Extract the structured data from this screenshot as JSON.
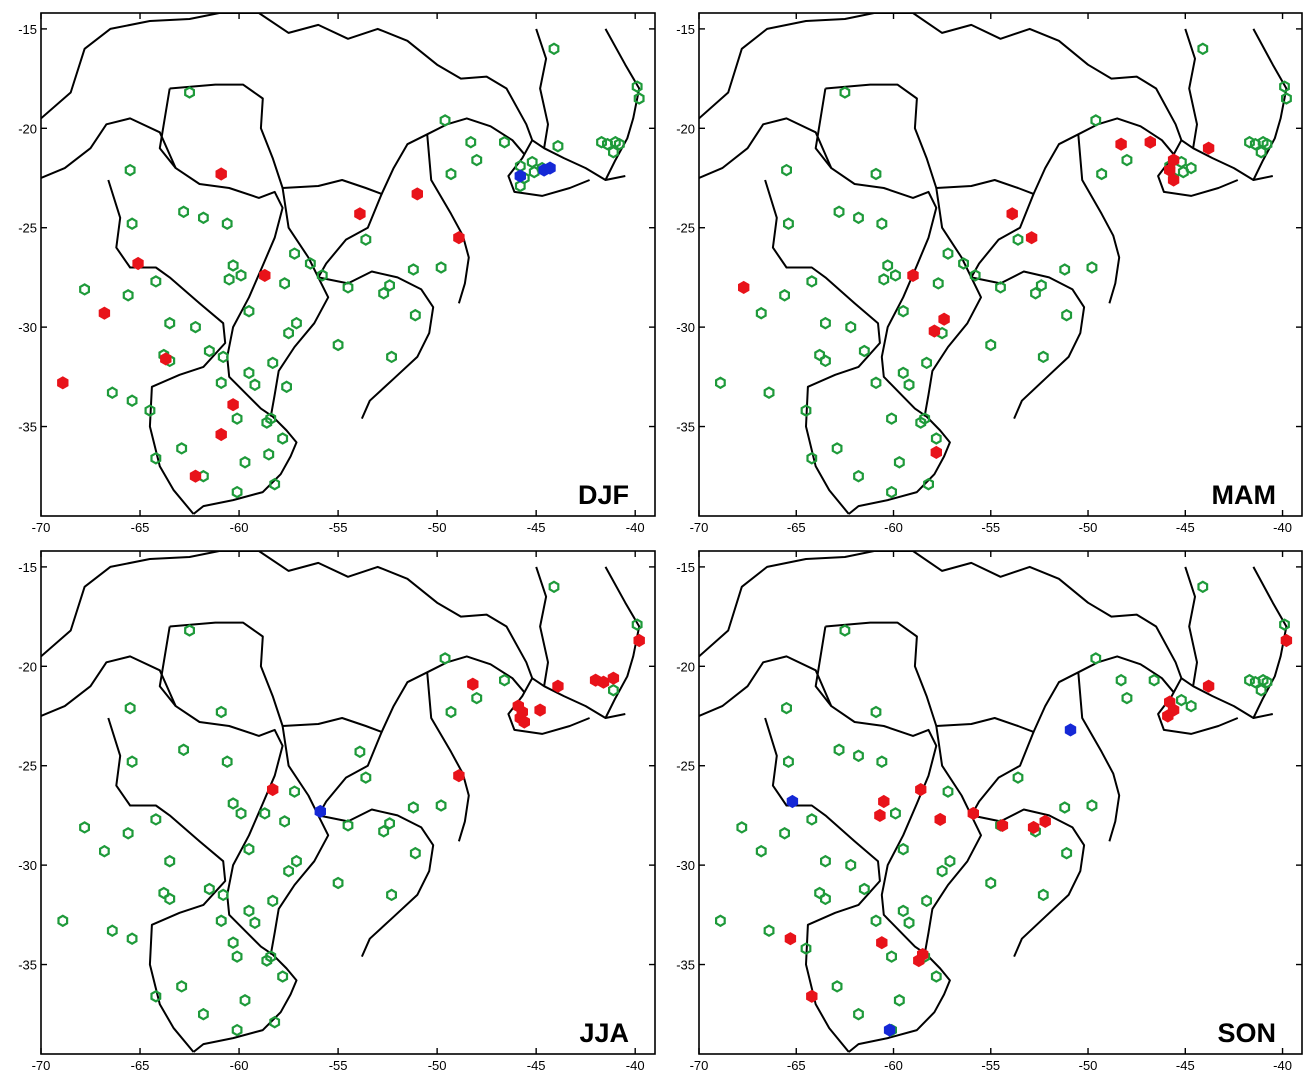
{
  "figure": {
    "lon_range": [
      -70,
      -39
    ],
    "lat_range": [
      -39.5,
      -14.2
    ],
    "x_ticks": [
      -70,
      -65,
      -60,
      -55,
      -50,
      -45,
      -40
    ],
    "y_ticks": [
      -15,
      -20,
      -25,
      -30,
      -35
    ],
    "colors": {
      "neutral": "#1e9a3a",
      "increase": "#e8131a",
      "decrease": "#1528d6",
      "boundary": "#000000"
    }
  },
  "panels": [
    {
      "label": "DJF",
      "green": [
        [
          -62.5,
          -18.2
        ],
        [
          -65.5,
          -22.1
        ],
        [
          -62.8,
          -24.2
        ],
        [
          -65.4,
          -24.8
        ],
        [
          -61.8,
          -24.5
        ],
        [
          -67.8,
          -28.1
        ],
        [
          -65.6,
          -28.4
        ],
        [
          -64.2,
          -27.7
        ],
        [
          -63.5,
          -29.8
        ],
        [
          -63.8,
          -31.4
        ],
        [
          -63.5,
          -31.7
        ],
        [
          -62.2,
          -30.0
        ],
        [
          -61.5,
          -31.2
        ],
        [
          -60.8,
          -31.5
        ],
        [
          -66.4,
          -33.3
        ],
        [
          -65.4,
          -33.7
        ],
        [
          -64.5,
          -34.2
        ],
        [
          -64.2,
          -36.6
        ],
        [
          -62.9,
          -36.1
        ],
        [
          -61.8,
          -37.5
        ],
        [
          -60.1,
          -38.3
        ],
        [
          -58.2,
          -37.9
        ],
        [
          -59.7,
          -36.8
        ],
        [
          -58.5,
          -36.4
        ],
        [
          -57.8,
          -35.6
        ],
        [
          -58.6,
          -34.8
        ],
        [
          -58.4,
          -34.6
        ],
        [
          -60.1,
          -34.6
        ],
        [
          -60.9,
          -32.8
        ],
        [
          -59.5,
          -32.3
        ],
        [
          -59.2,
          -32.9
        ],
        [
          -59.5,
          -29.2
        ],
        [
          -60.3,
          -26.9
        ],
        [
          -60.5,
          -27.6
        ],
        [
          -59.9,
          -27.4
        ],
        [
          -60.6,
          -24.8
        ],
        [
          -57.7,
          -27.8
        ],
        [
          -57.2,
          -26.3
        ],
        [
          -56.4,
          -26.8
        ],
        [
          -55.8,
          -27.4
        ],
        [
          -57.1,
          -29.8
        ],
        [
          -57.5,
          -30.3
        ],
        [
          -58.3,
          -31.8
        ],
        [
          -57.6,
          -33.0
        ],
        [
          -55.0,
          -30.9
        ],
        [
          -54.5,
          -28.0
        ],
        [
          -53.6,
          -25.6
        ],
        [
          -52.7,
          -28.3
        ],
        [
          -52.4,
          -27.9
        ],
        [
          -51.2,
          -27.1
        ],
        [
          -51.1,
          -29.4
        ],
        [
          -52.3,
          -31.5
        ],
        [
          -49.8,
          -27.0
        ],
        [
          -49.3,
          -22.3
        ],
        [
          -49.6,
          -19.6
        ],
        [
          -48.3,
          -20.7
        ],
        [
          -48.0,
          -21.6
        ],
        [
          -46.6,
          -20.7
        ],
        [
          -45.8,
          -21.9
        ],
        [
          -45.2,
          -21.7
        ],
        [
          -45.6,
          -22.5
        ],
        [
          -45.8,
          -22.9
        ],
        [
          -45.1,
          -22.2
        ],
        [
          -44.7,
          -22.0
        ],
        [
          -43.9,
          -20.9
        ],
        [
          -44.1,
          -16.0
        ],
        [
          -41.7,
          -20.7
        ],
        [
          -41.4,
          -20.8
        ],
        [
          -41.0,
          -20.7
        ],
        [
          -40.8,
          -20.8
        ],
        [
          -41.1,
          -21.2
        ],
        [
          -39.9,
          -17.9
        ],
        [
          -39.8,
          -18.5
        ]
      ],
      "red": [
        [
          -60.9,
          -22.3
        ],
        [
          -65.1,
          -26.8
        ],
        [
          -66.8,
          -29.3
        ],
        [
          -63.7,
          -31.6
        ],
        [
          -68.9,
          -32.8
        ],
        [
          -60.3,
          -33.9
        ],
        [
          -60.9,
          -35.4
        ],
        [
          -62.2,
          -37.5
        ],
        [
          -58.7,
          -27.4
        ],
        [
          -53.9,
          -24.3
        ],
        [
          -51.0,
          -23.3
        ],
        [
          -48.9,
          -25.5
        ]
      ],
      "blue": [
        [
          -45.8,
          -22.4
        ],
        [
          -44.6,
          -22.1
        ],
        [
          -44.3,
          -22.0
        ]
      ]
    },
    {
      "label": "MAM",
      "green": [
        [
          -65.5,
          -22.1
        ],
        [
          -62.8,
          -24.2
        ],
        [
          -65.4,
          -24.8
        ],
        [
          -61.8,
          -24.5
        ],
        [
          -66.8,
          -29.3
        ],
        [
          -65.6,
          -28.4
        ],
        [
          -64.2,
          -27.7
        ],
        [
          -63.5,
          -29.8
        ],
        [
          -63.8,
          -31.4
        ],
        [
          -63.5,
          -31.7
        ],
        [
          -62.2,
          -30.0
        ],
        [
          -61.5,
          -31.2
        ],
        [
          -68.9,
          -32.8
        ],
        [
          -66.4,
          -33.3
        ],
        [
          -64.5,
          -34.2
        ],
        [
          -64.2,
          -36.6
        ],
        [
          -62.9,
          -36.1
        ],
        [
          -61.8,
          -37.5
        ],
        [
          -60.1,
          -38.3
        ],
        [
          -58.2,
          -37.9
        ],
        [
          -59.7,
          -36.8
        ],
        [
          -57.8,
          -35.6
        ],
        [
          -58.6,
          -34.8
        ],
        [
          -58.4,
          -34.6
        ],
        [
          -60.1,
          -34.6
        ],
        [
          -60.9,
          -32.8
        ],
        [
          -59.5,
          -32.3
        ],
        [
          -59.2,
          -32.9
        ],
        [
          -59.5,
          -29.2
        ],
        [
          -60.3,
          -26.9
        ],
        [
          -60.5,
          -27.6
        ],
        [
          -59.9,
          -27.4
        ],
        [
          -60.6,
          -24.8
        ],
        [
          -57.7,
          -27.8
        ],
        [
          -57.2,
          -26.3
        ],
        [
          -56.4,
          -26.8
        ],
        [
          -55.8,
          -27.4
        ],
        [
          -57.5,
          -30.3
        ],
        [
          -58.3,
          -31.8
        ],
        [
          -55.0,
          -30.9
        ],
        [
          -54.5,
          -28.0
        ],
        [
          -53.6,
          -25.6
        ],
        [
          -52.7,
          -28.3
        ],
        [
          -52.4,
          -27.9
        ],
        [
          -51.2,
          -27.1
        ],
        [
          -51.1,
          -29.4
        ],
        [
          -52.3,
          -31.5
        ],
        [
          -49.8,
          -27.0
        ],
        [
          -49.3,
          -22.3
        ],
        [
          -49.6,
          -19.6
        ],
        [
          -48.0,
          -21.6
        ],
        [
          -45.8,
          -21.9
        ],
        [
          -45.2,
          -21.7
        ],
        [
          -45.6,
          -22.5
        ],
        [
          -45.1,
          -22.2
        ],
        [
          -44.7,
          -22.0
        ],
        [
          -44.1,
          -16.0
        ],
        [
          -41.7,
          -20.7
        ],
        [
          -41.4,
          -20.8
        ],
        [
          -41.0,
          -20.7
        ],
        [
          -40.8,
          -20.8
        ],
        [
          -41.1,
          -21.2
        ],
        [
          -39.9,
          -17.9
        ],
        [
          -39.8,
          -18.5
        ],
        [
          -62.5,
          -18.2
        ],
        [
          -60.9,
          -22.3
        ]
      ],
      "red": [
        [
          -67.7,
          -28.0
        ],
        [
          -59.0,
          -27.4
        ],
        [
          -57.9,
          -30.2
        ],
        [
          -57.4,
          -29.6
        ],
        [
          -57.8,
          -36.3
        ],
        [
          -53.9,
          -24.3
        ],
        [
          -52.9,
          -25.5
        ],
        [
          -48.3,
          -20.8
        ],
        [
          -46.8,
          -20.7
        ],
        [
          -45.6,
          -21.6
        ],
        [
          -45.8,
          -22.1
        ],
        [
          -45.6,
          -22.6
        ],
        [
          -43.8,
          -21.0
        ]
      ],
      "blue": []
    },
    {
      "label": "JJA",
      "green": [
        [
          -62.5,
          -18.2
        ],
        [
          -65.5,
          -22.1
        ],
        [
          -60.9,
          -22.3
        ],
        [
          -62.8,
          -24.2
        ],
        [
          -65.4,
          -24.8
        ],
        [
          -60.6,
          -24.8
        ],
        [
          -67.8,
          -28.1
        ],
        [
          -65.6,
          -28.4
        ],
        [
          -64.2,
          -27.7
        ],
        [
          -66.8,
          -29.3
        ],
        [
          -63.5,
          -29.8
        ],
        [
          -63.8,
          -31.4
        ],
        [
          -63.5,
          -31.7
        ],
        [
          -61.5,
          -31.2
        ],
        [
          -60.8,
          -31.5
        ],
        [
          -68.9,
          -32.8
        ],
        [
          -66.4,
          -33.3
        ],
        [
          -65.4,
          -33.7
        ],
        [
          -64.2,
          -36.6
        ],
        [
          -62.9,
          -36.1
        ],
        [
          -61.8,
          -37.5
        ],
        [
          -60.1,
          -38.3
        ],
        [
          -58.2,
          -37.9
        ],
        [
          -59.7,
          -36.8
        ],
        [
          -57.8,
          -35.6
        ],
        [
          -58.6,
          -34.8
        ],
        [
          -58.4,
          -34.6
        ],
        [
          -60.1,
          -34.6
        ],
        [
          -60.3,
          -33.9
        ],
        [
          -60.9,
          -32.8
        ],
        [
          -59.5,
          -32.3
        ],
        [
          -59.2,
          -32.9
        ],
        [
          -59.5,
          -29.2
        ],
        [
          -60.3,
          -26.9
        ],
        [
          -59.9,
          -27.4
        ],
        [
          -58.7,
          -27.4
        ],
        [
          -57.7,
          -27.8
        ],
        [
          -57.2,
          -26.3
        ],
        [
          -57.1,
          -29.8
        ],
        [
          -57.5,
          -30.3
        ],
        [
          -58.3,
          -31.8
        ],
        [
          -55.0,
          -30.9
        ],
        [
          -54.5,
          -28.0
        ],
        [
          -53.9,
          -24.3
        ],
        [
          -53.6,
          -25.6
        ],
        [
          -52.7,
          -28.3
        ],
        [
          -52.4,
          -27.9
        ],
        [
          -51.2,
          -27.1
        ],
        [
          -51.1,
          -29.4
        ],
        [
          -52.3,
          -31.5
        ],
        [
          -49.8,
          -27.0
        ],
        [
          -49.3,
          -22.3
        ],
        [
          -49.6,
          -19.6
        ],
        [
          -48.0,
          -21.6
        ],
        [
          -46.6,
          -20.7
        ],
        [
          -44.1,
          -16.0
        ],
        [
          -41.1,
          -21.2
        ],
        [
          -39.9,
          -17.9
        ]
      ],
      "red": [
        [
          -58.3,
          -26.2
        ],
        [
          -48.9,
          -25.5
        ],
        [
          -48.2,
          -20.9
        ],
        [
          -45.9,
          -22.0
        ],
        [
          -45.7,
          -22.3
        ],
        [
          -45.8,
          -22.6
        ],
        [
          -45.6,
          -22.8
        ],
        [
          -44.8,
          -22.2
        ],
        [
          -43.9,
          -21.0
        ],
        [
          -42.0,
          -20.7
        ],
        [
          -41.6,
          -20.8
        ],
        [
          -41.1,
          -20.6
        ],
        [
          -39.8,
          -18.7
        ]
      ],
      "blue": [
        [
          -55.9,
          -27.3
        ]
      ]
    },
    {
      "label": "SON",
      "green": [
        [
          -62.5,
          -18.2
        ],
        [
          -65.5,
          -22.1
        ],
        [
          -60.9,
          -22.3
        ],
        [
          -62.8,
          -24.2
        ],
        [
          -65.4,
          -24.8
        ],
        [
          -61.8,
          -24.5
        ],
        [
          -67.8,
          -28.1
        ],
        [
          -65.6,
          -28.4
        ],
        [
          -64.2,
          -27.7
        ],
        [
          -66.8,
          -29.3
        ],
        [
          -63.5,
          -29.8
        ],
        [
          -63.8,
          -31.4
        ],
        [
          -63.5,
          -31.7
        ],
        [
          -62.2,
          -30.0
        ],
        [
          -61.5,
          -31.2
        ],
        [
          -68.9,
          -32.8
        ],
        [
          -66.4,
          -33.3
        ],
        [
          -64.5,
          -34.2
        ],
        [
          -62.9,
          -36.1
        ],
        [
          -61.8,
          -37.5
        ],
        [
          -60.1,
          -38.3
        ],
        [
          -59.7,
          -36.8
        ],
        [
          -57.8,
          -35.6
        ],
        [
          -58.4,
          -34.6
        ],
        [
          -60.1,
          -34.6
        ],
        [
          -60.9,
          -32.8
        ],
        [
          -59.5,
          -32.3
        ],
        [
          -59.2,
          -32.9
        ],
        [
          -59.5,
          -29.2
        ],
        [
          -59.9,
          -27.4
        ],
        [
          -60.6,
          -24.8
        ],
        [
          -57.2,
          -26.3
        ],
        [
          -57.1,
          -29.8
        ],
        [
          -57.5,
          -30.3
        ],
        [
          -58.3,
          -31.8
        ],
        [
          -55.0,
          -30.9
        ],
        [
          -54.5,
          -28.0
        ],
        [
          -53.6,
          -25.6
        ],
        [
          -52.7,
          -28.3
        ],
        [
          -51.2,
          -27.1
        ],
        [
          -51.1,
          -29.4
        ],
        [
          -52.3,
          -31.5
        ],
        [
          -49.8,
          -27.0
        ],
        [
          -49.6,
          -19.6
        ],
        [
          -48.3,
          -20.7
        ],
        [
          -48.0,
          -21.6
        ],
        [
          -46.6,
          -20.7
        ],
        [
          -45.2,
          -21.7
        ],
        [
          -44.7,
          -22.0
        ],
        [
          -44.1,
          -16.0
        ],
        [
          -41.7,
          -20.7
        ],
        [
          -41.4,
          -20.8
        ],
        [
          -41.0,
          -20.7
        ],
        [
          -40.8,
          -20.8
        ],
        [
          -41.1,
          -21.2
        ],
        [
          -39.9,
          -17.9
        ]
      ],
      "red": [
        [
          -60.5,
          -26.8
        ],
        [
          -60.7,
          -27.5
        ],
        [
          -58.6,
          -26.2
        ],
        [
          -57.6,
          -27.7
        ],
        [
          -55.9,
          -27.4
        ],
        [
          -54.4,
          -28.0
        ],
        [
          -52.8,
          -28.1
        ],
        [
          -52.2,
          -27.8
        ],
        [
          -65.3,
          -33.7
        ],
        [
          -60.6,
          -33.9
        ],
        [
          -58.5,
          -34.5
        ],
        [
          -58.7,
          -34.8
        ],
        [
          -64.2,
          -36.6
        ],
        [
          -45.8,
          -21.8
        ],
        [
          -45.6,
          -22.2
        ],
        [
          -45.9,
          -22.5
        ],
        [
          -43.8,
          -21.0
        ],
        [
          -39.8,
          -18.7
        ]
      ],
      "blue": [
        [
          -65.2,
          -26.8
        ],
        [
          -50.9,
          -23.2
        ],
        [
          -60.2,
          -38.3
        ]
      ]
    }
  ]
}
